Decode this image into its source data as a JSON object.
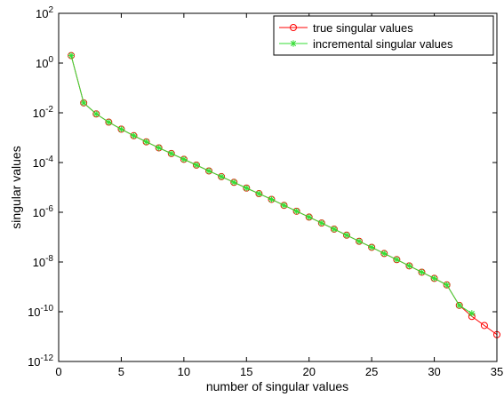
{
  "chart_data": {
    "type": "line",
    "title": "",
    "xlabel": "number of singular values",
    "ylabel": "singular values",
    "xlim": [
      0,
      35
    ],
    "ylim": [
      1e-12,
      100
    ],
    "yscale": "log",
    "grid": false,
    "legend_position": "top-right",
    "xticks": [
      0,
      5,
      10,
      15,
      20,
      25,
      30,
      35
    ],
    "yticks": [
      {
        "value": 100.0,
        "base": "10",
        "exp": "2"
      },
      {
        "value": 1.0,
        "base": "10",
        "exp": "0"
      },
      {
        "value": 0.01,
        "base": "10",
        "exp": "-2"
      },
      {
        "value": 0.0001,
        "base": "10",
        "exp": "-4"
      },
      {
        "value": 1e-06,
        "base": "10",
        "exp": "-6"
      },
      {
        "value": 1e-08,
        "base": "10",
        "exp": "-8"
      },
      {
        "value": 1e-10,
        "base": "10",
        "exp": "-10"
      },
      {
        "value": 1e-12,
        "base": "10",
        "exp": "-12"
      }
    ],
    "series": [
      {
        "name": "true singular values",
        "color": "#ff0000",
        "marker": "circle",
        "x": [
          1,
          2,
          3,
          4,
          5,
          6,
          7,
          8,
          9,
          10,
          11,
          12,
          13,
          14,
          15,
          16,
          17,
          18,
          19,
          20,
          21,
          22,
          23,
          24,
          25,
          26,
          27,
          28,
          29,
          30,
          31,
          32,
          33,
          34,
          35
        ],
        "y": [
          2.0,
          0.025,
          0.009,
          0.0042,
          0.0022,
          0.0012,
          0.00068,
          0.00039,
          0.00023,
          0.000135,
          7.9e-05,
          4.6e-05,
          2.7e-05,
          1.6e-05,
          9.4e-06,
          5.6e-06,
          3.3e-06,
          1.9e-06,
          1.1e-06,
          6.4e-07,
          3.7e-07,
          2.1e-07,
          1.2e-07,
          6.8e-08,
          3.9e-08,
          2.2e-08,
          1.25e-08,
          7e-09,
          3.9e-09,
          2.2e-09,
          1.2e-09,
          1.8e-10,
          6.5e-11,
          2.8e-11,
          1.2e-11
        ]
      },
      {
        "name": "incremental singular values",
        "color": "#33dd33",
        "marker": "star",
        "x": [
          1,
          2,
          3,
          4,
          5,
          6,
          7,
          8,
          9,
          10,
          11,
          12,
          13,
          14,
          15,
          16,
          17,
          18,
          19,
          20,
          21,
          22,
          23,
          24,
          25,
          26,
          27,
          28,
          29,
          30,
          31,
          32,
          33
        ],
        "y": [
          2.0,
          0.025,
          0.009,
          0.0042,
          0.0022,
          0.0012,
          0.00068,
          0.00039,
          0.00023,
          0.000135,
          7.9e-05,
          4.6e-05,
          2.7e-05,
          1.6e-05,
          9.4e-06,
          5.6e-06,
          3.3e-06,
          1.9e-06,
          1.1e-06,
          6.4e-07,
          3.7e-07,
          2.1e-07,
          1.2e-07,
          6.8e-08,
          3.9e-08,
          2.2e-08,
          1.25e-08,
          7e-09,
          3.9e-09,
          2.2e-09,
          1.2e-09,
          1.8e-10,
          8.5e-11
        ]
      }
    ]
  }
}
